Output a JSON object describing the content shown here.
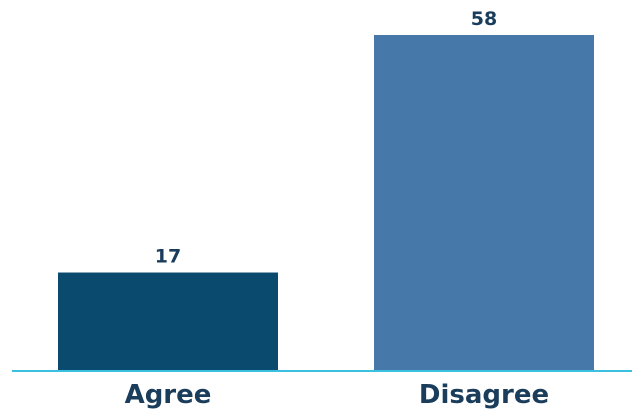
{
  "chart_data": {
    "type": "bar",
    "categories": [
      "Agree",
      "Disagree"
    ],
    "values": [
      17,
      58
    ],
    "title": "",
    "xlabel": "",
    "ylabel": "",
    "ylim": [
      0,
      58
    ],
    "grid": false,
    "legend": "none",
    "bar_colors": [
      "#0a4a6e",
      "#4679aa"
    ],
    "axis_color": "#3cc0e0",
    "label_color": "#1a3d5c"
  }
}
